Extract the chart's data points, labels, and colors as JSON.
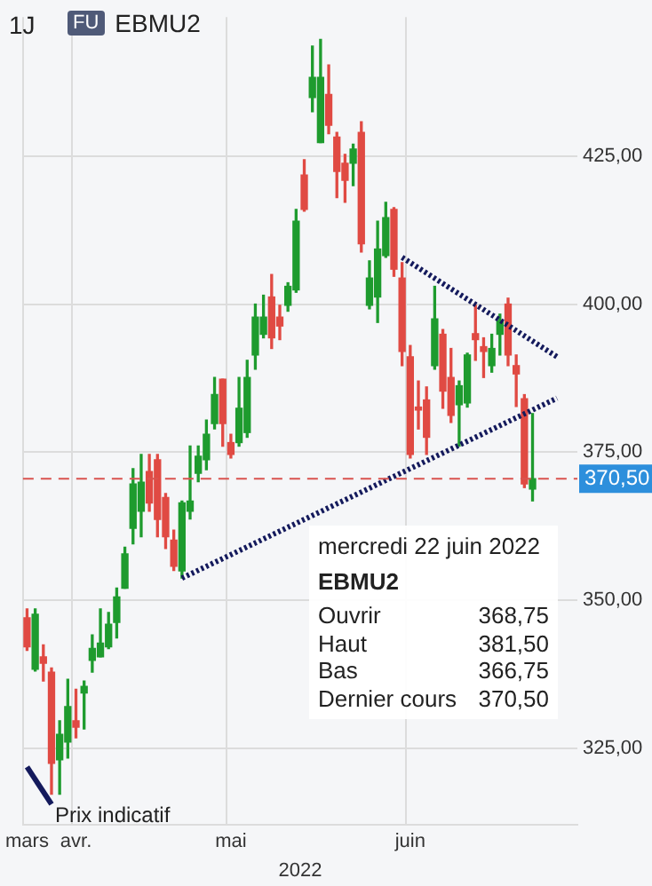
{
  "chart_data": {
    "type": "candlestick",
    "title": "EBMU2",
    "subtitle": "1J",
    "xlabel": "2022",
    "annotations": [
      "FU",
      "mercredi 22 juin 2022",
      "EBMU2",
      "Ouvrir",
      "368,75",
      "Haut",
      "381,50",
      "Bas",
      "366,75",
      "Dernier cours",
      "370,50"
    ],
    "categories": [
      "mars",
      null,
      null,
      null,
      null,
      null,
      "avr.",
      null,
      null,
      null,
      null,
      null,
      null,
      null,
      null,
      null,
      null,
      null,
      null,
      null,
      null,
      null,
      null,
      null,
      null,
      "mai",
      null,
      null,
      null,
      null,
      null,
      null,
      null,
      null,
      null,
      null,
      null,
      null,
      null,
      null,
      null,
      null,
      null,
      null,
      null,
      null,
      null,
      "juin",
      null,
      null,
      null,
      null,
      null,
      null,
      null,
      null,
      null,
      null,
      null,
      null,
      null,
      null,
      null,
      null,
      null,
      null,
      null,
      null
    ],
    "ohlc": [
      [
        347,
        348.5,
        341.5,
        342.1
      ],
      [
        338.3,
        348.5,
        338,
        347.6
      ],
      [
        340.4,
        342.4,
        336.3,
        339.3
      ],
      [
        337.8,
        338.5,
        317.2,
        322.4
      ],
      [
        323,
        329.6,
        317.2,
        327.3
      ],
      [
        326,
        336.6,
        323.3,
        332
      ],
      [
        329.6,
        334.9,
        326.7,
        328.5
      ],
      [
        334.3,
        336.3,
        328.2,
        335.4
      ],
      [
        339.8,
        344.1,
        337.8,
        341.8
      ],
      [
        340.4,
        348.5,
        340.4,
        342.7
      ],
      [
        342.1,
        347.9,
        341.8,
        345.9
      ],
      [
        346.2,
        352,
        343.6,
        350.5
      ],
      [
        352,
        358.9,
        352,
        357.8
      ],
      [
        362.1,
        372.2,
        359.5,
        369.6
      ],
      [
        365,
        374.6,
        360.7,
        369.9
      ],
      [
        371.7,
        374.6,
        365,
        366.4
      ],
      [
        373.7,
        374.6,
        360.7,
        363.6
      ],
      [
        367.3,
        368,
        358.7,
        360.7
      ],
      [
        360.1,
        361.8,
        355,
        355.7
      ],
      [
        354.9,
        366.7,
        353.7,
        366.4
      ],
      [
        365,
        376,
        363.7,
        366.7
      ],
      [
        371.4,
        376,
        370,
        374.3
      ],
      [
        373.7,
        380.4,
        372,
        378
      ],
      [
        379.8,
        387.6,
        378.9,
        384.7
      ],
      [
        387.3,
        387.3,
        376,
        379.8
      ],
      [
        376.6,
        378,
        374,
        374.6
      ],
      [
        376.6,
        387.6,
        376,
        382.4
      ],
      [
        378.3,
        390.5,
        377.5,
        387.6
      ],
      [
        391.4,
        400,
        389,
        397.8
      ],
      [
        394.9,
        401.5,
        394.3,
        397.8
      ],
      [
        401.2,
        405,
        392.5,
        394.3
      ],
      [
        397.8,
        399.8,
        394,
        396.3
      ],
      [
        399.8,
        403.6,
        398.8,
        403
      ],
      [
        402.4,
        416,
        402,
        414
      ],
      [
        421.8,
        424.4,
        415.7,
        416
      ],
      [
        434.9,
        443.6,
        432.5,
        438.3
      ],
      [
        427.3,
        444.7,
        427.3,
        438.3
      ],
      [
        435.4,
        440.4,
        428.8,
        430.2
      ],
      [
        428.2,
        429,
        418,
        422.4
      ],
      [
        423.8,
        425.3,
        417.2,
        420.9
      ],
      [
        423.8,
        427,
        420,
        426.2
      ],
      [
        429,
        430.8,
        408.8,
        410.2
      ],
      [
        399.8,
        407.3,
        399.2,
        404.4
      ],
      [
        401.2,
        414,
        396.9,
        409.3
      ],
      [
        408.2,
        417.2,
        407.9,
        414.6
      ],
      [
        416,
        416.3,
        404.7,
        405.9
      ],
      [
        404.4,
        407,
        389.6,
        392
      ],
      [
        391.1,
        393,
        374,
        374.6
      ],
      [
        382.6,
        387,
        378.9,
        382.1
      ],
      [
        383.8,
        386,
        374.6,
        377.5
      ],
      [
        389.6,
        403,
        389,
        397.5
      ],
      [
        394.9,
        395.7,
        382.4,
        385.3
      ],
      [
        387.6,
        392.5,
        380,
        381.2
      ],
      [
        383,
        387,
        376,
        386.2
      ],
      [
        383.3,
        391.7,
        382.6,
        391.4
      ],
      [
        395,
        399.8,
        390.5,
        394
      ],
      [
        392.8,
        394.3,
        387.6,
        392
      ],
      [
        389.6,
        394.9,
        388.5,
        392.5
      ],
      [
        394.9,
        398.3,
        391.4,
        397.2
      ],
      [
        400,
        401,
        389.6,
        391.4
      ],
      [
        389.6,
        391.4,
        382.7,
        388.2
      ],
      [
        384,
        384.7,
        369,
        369.6
      ],
      [
        368.75,
        381.5,
        366.75,
        370.5
      ],
      null,
      null,
      null,
      null,
      null
    ],
    "colors": [
      "#e04a43",
      "#1e9b2e",
      "#e04a43",
      "#e04a43",
      "#1e9b2e",
      "#1e9b2e",
      "#e04a43",
      "#1e9b2e",
      "#1e9b2e",
      "#1e9b2e",
      "#1e9b2e",
      "#1e9b2e",
      "#1e9b2e",
      "#1e9b2e",
      "#1e9b2e",
      "#e04a43",
      "#e04a43",
      "#e04a43",
      "#e04a43",
      "#1e9b2e",
      "#1e9b2e",
      "#1e9b2e",
      "#1e9b2e",
      "#1e9b2e",
      "#e04a43",
      "#e04a43",
      "#1e9b2e",
      "#1e9b2e",
      "#1e9b2e",
      "#1e9b2e",
      "#e04a43",
      "#e04a43",
      "#1e9b2e",
      "#1e9b2e",
      "#e04a43",
      "#1e9b2e",
      "#1e9b2e",
      "#e04a43",
      "#e04a43",
      "#e04a43",
      "#1e9b2e",
      "#e04a43",
      "#1e9b2e",
      "#1e9b2e",
      "#1e9b2e",
      "#e04a43",
      "#e04a43",
      "#e04a43",
      "#e04a43",
      "#e04a43",
      "#1e9b2e",
      "#e04a43",
      "#e04a43",
      "#1e9b2e",
      "#1e9b2e",
      "#e04a43",
      "#e04a43",
      "#1e9b2e",
      "#1e9b2e",
      "#e04a43",
      "#e04a43",
      "#e04a43",
      "#1e9b2e",
      null,
      null,
      null,
      null,
      null
    ],
    "series": [
      {
        "type": "line",
        "name": "Prix indicatif",
        "color": "#141a5c",
        "values": [
          321.8,
          null,
          null,
          315.5,
          null,
          null,
          null,
          null,
          null,
          null,
          null,
          null,
          null,
          null,
          null,
          null,
          null,
          null,
          null,
          null,
          null,
          null,
          null,
          null,
          null,
          null,
          null,
          null,
          null,
          null,
          null,
          null,
          null,
          null,
          null,
          null,
          null,
          null,
          null,
          null,
          null,
          null,
          null,
          null,
          null,
          null,
          null,
          null,
          null,
          null,
          null,
          null,
          null,
          null,
          null,
          null,
          null,
          null,
          null,
          null,
          null,
          null,
          null,
          null,
          null,
          null,
          null,
          null
        ]
      },
      {
        "type": "line",
        "color": "#141a5c",
        "line_style": "dotted",
        "values": [
          null,
          null,
          null,
          null,
          null,
          null,
          null,
          null,
          null,
          null,
          null,
          null,
          null,
          null,
          null,
          null,
          null,
          null,
          null,
          null,
          null,
          null,
          null,
          null,
          null,
          null,
          null,
          null,
          null,
          null,
          null,
          null,
          null,
          null,
          null,
          null,
          null,
          null,
          null,
          null,
          null,
          null,
          null,
          null,
          null,
          null,
          407.9,
          null,
          null,
          null,
          null,
          null,
          null,
          null,
          null,
          null,
          null,
          null,
          null,
          null,
          null,
          null,
          null,
          null,
          null,
          391.1,
          null,
          null
        ]
      },
      {
        "type": "line",
        "color": "#141a5c",
        "line_style": "dotted",
        "values": [
          null,
          null,
          null,
          null,
          null,
          null,
          null,
          null,
          null,
          null,
          null,
          null,
          null,
          null,
          null,
          null,
          null,
          null,
          null,
          353.7,
          null,
          null,
          null,
          null,
          null,
          null,
          null,
          null,
          null,
          null,
          null,
          null,
          null,
          null,
          null,
          null,
          null,
          null,
          null,
          null,
          null,
          null,
          null,
          null,
          null,
          null,
          null,
          null,
          null,
          null,
          null,
          null,
          null,
          null,
          null,
          null,
          null,
          null,
          null,
          null,
          null,
          null,
          null,
          null,
          null,
          384.1,
          null,
          null
        ]
      }
    ],
    "ylim": [
      312,
      448.5
    ],
    "yticks": [
      {
        "value": 325,
        "label": "325,00"
      },
      {
        "value": 350,
        "label": "350,00"
      },
      {
        "value": 375,
        "label": "375,00"
      },
      {
        "value": 400,
        "label": "400,00"
      },
      {
        "value": 425,
        "label": "425,00"
      }
    ],
    "ref_lines": [
      {
        "axis": "y",
        "value": 370.5,
        "label": "370,50",
        "color": "#d9534f",
        "line_style": "dashed"
      }
    ],
    "grid": true
  }
}
